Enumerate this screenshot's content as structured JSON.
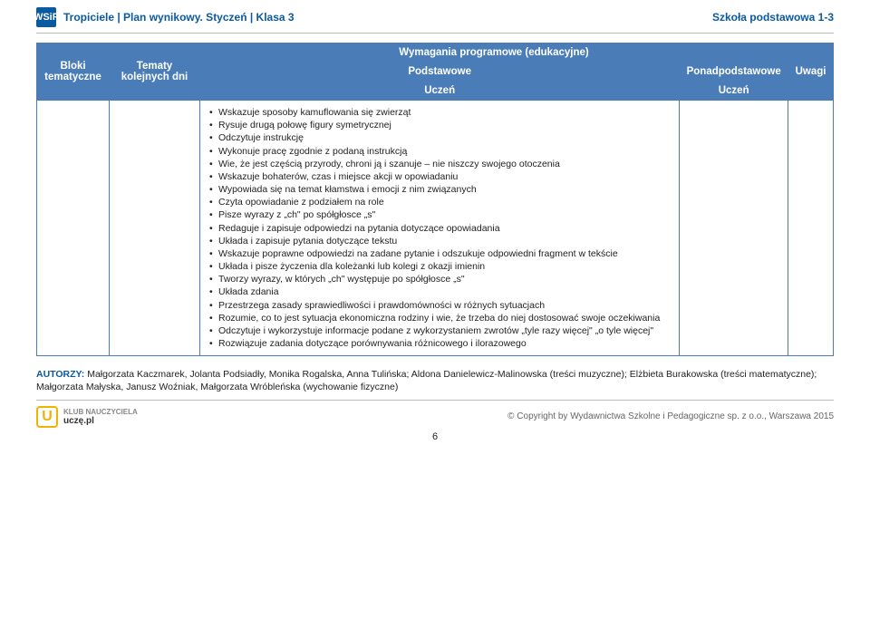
{
  "header": {
    "logo_text": "WSiP",
    "left": "Tropiciele | Plan wynikowy. Styczeń | Klasa 3",
    "right": "Szkoła podstawowa 1-3"
  },
  "table": {
    "col1": "Bloki tematyczne",
    "col2": "Tematy kolejnych dni",
    "col3_group": "Wymagania programowe (edukacyjne)",
    "col3a": "Podstawowe",
    "col3b": "Ponadpodstawowe",
    "col4": "Uwagi",
    "sub_uczen": "Uczeń"
  },
  "items": [
    "Wskazuje sposoby kamuflowania się zwierząt",
    "Rysuje drugą połowę figury symetrycznej",
    "Odczytuje instrukcję",
    "Wykonuje pracę zgodnie z podaną instrukcją",
    "Wie, że jest częścią przyrody, chroni ją i szanuje – nie niszczy swojego otoczenia",
    "Wskazuje bohaterów, czas i miejsce akcji w opowiadaniu",
    "Wypowiada się na temat kłamstwa i emocji z nim związanych",
    "Czyta opowiadanie z podziałem na role",
    "Pisze wyrazy z „ch\" po spółgłosce „s\"",
    "Redaguje i zapisuje odpowiedzi na pytania dotyczące opowiadania",
    "Układa i zapisuje pytania dotyczące tekstu",
    "Wskazuje poprawne odpowiedzi na zadane pytanie i odszukuje odpowiedni fragment w tekście",
    "Układa i pisze życzenia dla koleżanki lub kolegi z okazji imienin",
    "Tworzy wyrazy, w których „ch\" występuje po spółgłosce „s\"",
    "Układa zdania",
    "Przestrzega zasady sprawiedliwości i prawdomówności w różnych sytuacjach",
    "Rozumie, co to jest sytuacja ekonomiczna rodziny i wie, że trzeba do niej dostosować swoje oczekiwania",
    "Odczytuje i wykorzystuje informacje podane z wykorzystaniem zwrotów „tyle razy więcej\" „o tyle więcej\"",
    "Rozwiązuje zadania dotyczące porównywania różnicowego i ilorazowego"
  ],
  "authors": {
    "label": "AUTORZY:",
    "text": " Małgorzata Kaczmarek, Jolanta Podsiadły, Monika Rogalska, Anna Tulińska; Aldona Danielewicz-Malinowska (treści muzyczne); Elżbieta Burakowska (treści matematyczne); Małgorzata Małyska, Janusz Woźniak, Małgorzata Wróbleńska (wychowanie fizyczne)"
  },
  "footer": {
    "brand_sub": "KLUB NAUCZYCIELA",
    "brand": "uczę.pl",
    "copyright": "© Copyright by Wydawnictwa Szkolne i Pedagogiczne sp. z o.o., Warszawa 2015",
    "page": "6"
  },
  "colors": {
    "brand_blue": "#0a5aa0",
    "table_blue": "#4a7db8",
    "accent_yellow": "#f0b400"
  }
}
